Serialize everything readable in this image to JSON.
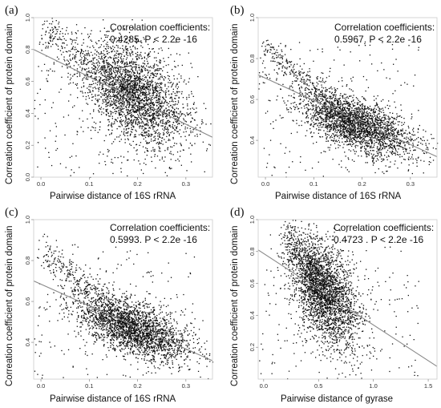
{
  "chart_data": [
    {
      "panel": "(a)",
      "type": "scatter",
      "title": "",
      "xlabel": "Pairwise distance of 16S rRNA",
      "ylabel": "Correation coefficient of protein domain",
      "xlim": [
        -0.015,
        0.355
      ],
      "ylim": [
        0.0,
        1.0
      ],
      "xticks": [
        "0.0",
        "0.1",
        "0.2",
        "0.3"
      ],
      "yticks": [
        "0.0",
        "0.2",
        "0.4",
        "0.6",
        "0.8",
        "1.0"
      ],
      "annotation_line1": "Correlation coefficients:",
      "annotation_line2": "0.4285. P < 2.2e -16",
      "correlation": 0.4285,
      "regression_line": [
        [
          -0.015,
          0.8
        ],
        [
          0.355,
          0.25
        ]
      ],
      "point_cloud": {
        "center": [
          0.195,
          0.52
        ],
        "spread": [
          0.055,
          0.17
        ],
        "tail_from": [
          0.0,
          0.92
        ],
        "n_points": 3200
      }
    },
    {
      "panel": "(b)",
      "type": "scatter",
      "title": "",
      "xlabel": "Pairwise distance of 16S rRNA",
      "ylabel": "Correation coefficient of protein domain",
      "xlim": [
        -0.015,
        0.355
      ],
      "ylim": [
        0.22,
        1.0
      ],
      "xticks": [
        "0.0",
        "0.1",
        "0.2",
        "0.3"
      ],
      "yticks": [
        "0.4",
        "0.6",
        "0.8",
        "1.0"
      ],
      "annotation_line1": "Correlation coefficients:",
      "annotation_line2": "0.5967. P < 2.2e -16",
      "correlation": 0.5967,
      "regression_line": [
        [
          -0.015,
          0.72
        ],
        [
          0.355,
          0.32
        ]
      ],
      "point_cloud": {
        "center": [
          0.19,
          0.48
        ],
        "spread": [
          0.06,
          0.08
        ],
        "tail_from": [
          0.0,
          0.85
        ],
        "n_points": 3000
      }
    },
    {
      "panel": "(c)",
      "type": "scatter",
      "title": "",
      "xlabel": "Pairwise distance of 16S rRNA",
      "ylabel": "Correation coefficient of protein domain",
      "xlim": [
        -0.015,
        0.355
      ],
      "ylim": [
        0.22,
        1.0
      ],
      "xticks": [
        "0.0",
        "0.1",
        "0.2",
        "0.3"
      ],
      "yticks": [
        "0.4",
        "0.6",
        "0.8",
        "1.0"
      ],
      "annotation_line1": "Correlation coefficients:",
      "annotation_line2": "0.5993. P < 2.2e -16",
      "correlation": 0.5993,
      "regression_line": [
        [
          -0.015,
          0.7
        ],
        [
          0.355,
          0.31
        ]
      ],
      "point_cloud": {
        "center": [
          0.19,
          0.47
        ],
        "spread": [
          0.06,
          0.08
        ],
        "tail_from": [
          0.0,
          0.85
        ],
        "n_points": 3000
      }
    },
    {
      "panel": "(d)",
      "type": "scatter",
      "title": "",
      "xlabel": "Pairwise distance of gyrase",
      "ylabel": "Correation coefficient of protein domain",
      "xlim": [
        -0.05,
        1.58
      ],
      "ylim": [
        0.0,
        1.0
      ],
      "xticks": [
        "0.0",
        "0.5",
        "1.0",
        "1.5"
      ],
      "yticks": [
        "0.2",
        "0.4",
        "0.6",
        "0.8",
        "1.0"
      ],
      "annotation_line1": "Correlation coefficients:",
      "annotation_line2": "0.4723 . P < 2.2e -16",
      "correlation": 0.4723,
      "regression_line": [
        [
          -0.05,
          0.81
        ],
        [
          1.58,
          0.08
        ]
      ],
      "point_cloud": {
        "center": [
          0.55,
          0.55
        ],
        "spread": [
          0.16,
          0.18
        ],
        "tail_from": [
          0.2,
          0.92
        ],
        "n_points": 3200
      }
    }
  ]
}
